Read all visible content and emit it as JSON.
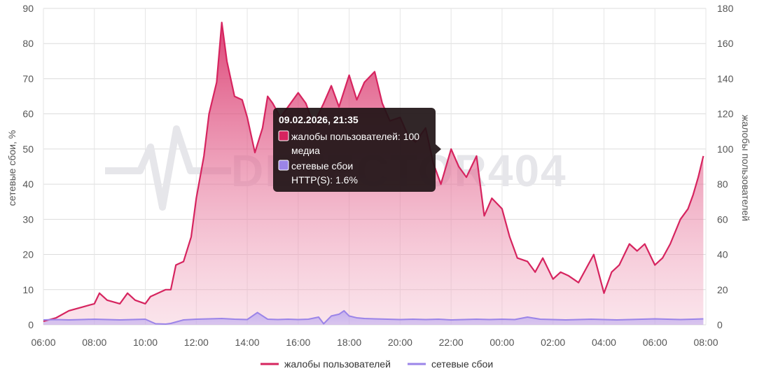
{
  "chart_data": {
    "type": "area",
    "x_ticks": [
      "06:00",
      "08:00",
      "10:00",
      "12:00",
      "14:00",
      "16:00",
      "18:00",
      "20:00",
      "22:00",
      "00:00",
      "02:00",
      "04:00",
      "06:00",
      "08:00"
    ],
    "y_left": {
      "label": "сетевые сбои, %",
      "ticks": [
        "0",
        "10",
        "20",
        "30",
        "40",
        "50",
        "60",
        "70",
        "80",
        "90"
      ],
      "range": [
        0,
        90
      ]
    },
    "y_right": {
      "label": "жалобы пользователей",
      "ticks": [
        "0",
        "20",
        "40",
        "60",
        "80",
        "100",
        "120",
        "140",
        "160",
        "180"
      ],
      "range": [
        0,
        180
      ]
    },
    "x_range_hours": [
      6,
      32
    ],
    "series": [
      {
        "name": "жалобы пользователей",
        "axis": "right",
        "color": "#d6245f",
        "x_hours": [
          6.0,
          6.5,
          7.0,
          7.5,
          8.0,
          8.2,
          8.5,
          9.0,
          9.3,
          9.6,
          10.0,
          10.2,
          10.5,
          10.8,
          11.0,
          11.2,
          11.5,
          11.8,
          12.0,
          12.3,
          12.5,
          12.8,
          13.0,
          13.2,
          13.5,
          13.8,
          14.0,
          14.3,
          14.6,
          14.8,
          15.0,
          15.3,
          15.6,
          16.0,
          16.3,
          16.6,
          17.0,
          17.3,
          17.6,
          18.0,
          18.3,
          18.6,
          19.0,
          19.3,
          19.6,
          20.0,
          20.3,
          20.6,
          21.0,
          21.3,
          21.6,
          22.0,
          22.3,
          22.6,
          23.0,
          23.3,
          23.6,
          24.0,
          24.3,
          24.6,
          25.0,
          25.3,
          25.6,
          26.0,
          26.3,
          26.6,
          27.0,
          27.3,
          27.6,
          28.0,
          28.3,
          28.6,
          29.0,
          29.3,
          29.6,
          30.0,
          30.3,
          30.6,
          31.0,
          31.3,
          31.5,
          31.7,
          31.9
        ],
        "values": [
          2,
          4,
          8,
          10,
          12,
          18,
          14,
          12,
          18,
          14,
          12,
          16,
          18,
          20,
          20,
          34,
          36,
          50,
          72,
          96,
          120,
          138,
          172,
          150,
          130,
          128,
          118,
          98,
          112,
          130,
          126,
          118,
          124,
          132,
          126,
          114,
          126,
          136,
          124,
          142,
          128,
          138,
          144,
          126,
          116,
          118,
          108,
          104,
          112,
          92,
          80,
          100,
          90,
          84,
          96,
          62,
          72,
          66,
          50,
          38,
          36,
          30,
          38,
          26,
          30,
          28,
          24,
          32,
          40,
          18,
          30,
          34,
          46,
          42,
          46,
          34,
          38,
          46,
          60,
          66,
          74,
          84,
          96
        ]
      },
      {
        "name": "сетевые сбои",
        "axis": "left",
        "color": "#9b84e8",
        "x_hours": [
          6.0,
          6.5,
          7.0,
          7.5,
          8.0,
          8.5,
          9.0,
          9.5,
          10.0,
          10.4,
          10.8,
          11.0,
          11.5,
          12.0,
          12.5,
          13.0,
          13.5,
          14.0,
          14.4,
          14.8,
          15.2,
          15.6,
          16.0,
          16.4,
          16.8,
          17.0,
          17.3,
          17.6,
          17.8,
          18.0,
          18.3,
          18.6,
          19.0,
          19.5,
          20.0,
          20.5,
          21.0,
          21.5,
          22.0,
          22.5,
          23.0,
          23.5,
          24.0,
          24.5,
          25.0,
          25.5,
          26.0,
          26.5,
          27.0,
          27.5,
          28.0,
          28.5,
          29.0,
          29.5,
          30.0,
          30.5,
          31.0,
          31.5,
          31.9
        ],
        "values": [
          1.4,
          1.5,
          1.4,
          1.5,
          1.6,
          1.5,
          1.4,
          1.5,
          1.6,
          0.3,
          0.2,
          0.4,
          1.4,
          1.6,
          1.7,
          1.8,
          1.6,
          1.5,
          3.5,
          1.6,
          1.5,
          1.6,
          1.5,
          1.6,
          2.2,
          0.3,
          2.5,
          3.0,
          4.0,
          2.5,
          2.0,
          1.8,
          1.7,
          1.6,
          1.5,
          1.6,
          1.5,
          1.6,
          1.4,
          1.5,
          1.6,
          1.5,
          1.6,
          1.5,
          2.2,
          1.6,
          1.5,
          1.4,
          1.5,
          1.6,
          1.5,
          1.4,
          1.5,
          1.6,
          1.7,
          1.6,
          1.5,
          1.6,
          1.7
        ]
      }
    ],
    "grid": true,
    "legend_position": "bottom-center"
  },
  "watermark": "—╱╲╱— DETECTOR404",
  "tooltip": {
    "title": "09.02.2026, 21:35",
    "row1_line1": "жалобы пользователей: 100",
    "row1_line2": "медиа",
    "row2_line1": "сетевые сбои",
    "row2_line2": "HTTP(S): 1.6%",
    "row1_color": "#d6245f",
    "row2_color": "#9b84e8"
  },
  "legend": [
    {
      "label": "жалобы пользователей",
      "color": "#d6245f"
    },
    {
      "label": "сетевые сбои",
      "color": "#9b84e8"
    }
  ]
}
